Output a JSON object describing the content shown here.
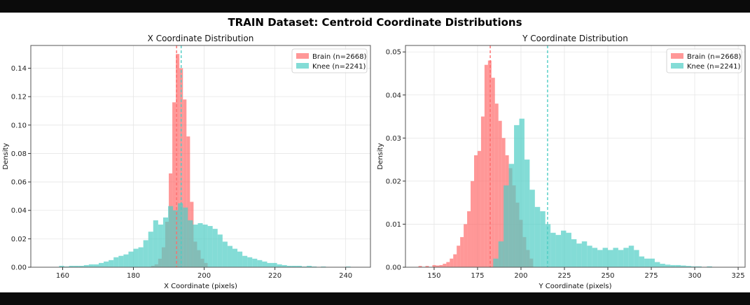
{
  "figure": {
    "title": "TRAIN Dataset: Centroid Coordinate Distributions"
  },
  "colors": {
    "brain": "#ff6b6b",
    "knee": "#4ecdc4",
    "axis": "#555555",
    "grid": "#e6e6e6"
  },
  "chart_data": [
    {
      "type": "histogram",
      "title": "X Coordinate Distribution",
      "xlabel": "X Coordinate (pixels)",
      "ylabel": "Density",
      "xlim": [
        151,
        247
      ],
      "ylim": [
        0,
        0.156
      ],
      "xticks": [
        160,
        180,
        200,
        220,
        240
      ],
      "yticks": [
        0.0,
        0.02,
        0.04,
        0.06,
        0.08,
        0.1,
        0.12,
        0.14
      ],
      "ytick_labels": [
        "0.00",
        "0.02",
        "0.04",
        "0.06",
        "0.08",
        "0.10",
        "0.12",
        "0.14"
      ],
      "legend_position": "top-right",
      "grid": true,
      "series": [
        {
          "name": "Brain (n=2668)",
          "color": "brain",
          "mean_line": 192.2,
          "bins": [
            [
              185,
              186,
              0.001
            ],
            [
              186,
              187,
              0.002
            ],
            [
              187,
              188,
              0.006
            ],
            [
              188,
              189,
              0.014
            ],
            [
              189,
              190,
              0.032
            ],
            [
              190,
              191,
              0.066
            ],
            [
              191,
              192,
              0.116
            ],
            [
              192,
              193,
              0.15
            ],
            [
              193,
              194,
              0.14
            ],
            [
              194,
              195,
              0.118
            ],
            [
              195,
              196,
              0.092
            ],
            [
              196,
              197,
              0.046
            ],
            [
              197,
              198,
              0.018
            ],
            [
              198,
              199,
              0.012
            ],
            [
              199,
              200,
              0.006
            ],
            [
              200,
              201,
              0.003
            ]
          ]
        },
        {
          "name": "Knee (n=2241)",
          "color": "knee",
          "mean_line": 193.5,
          "bins": [
            [
              159,
              160.4,
              0.001
            ],
            [
              160.4,
              161.8,
              0.0005
            ],
            [
              161.8,
              163.2,
              0.001
            ],
            [
              163.2,
              164.6,
              0.001
            ],
            [
              164.6,
              166,
              0.001
            ],
            [
              166,
              167.4,
              0.0015
            ],
            [
              167.4,
              168.8,
              0.002
            ],
            [
              168.8,
              170.2,
              0.002
            ],
            [
              170.2,
              171.6,
              0.003
            ],
            [
              171.6,
              173,
              0.004
            ],
            [
              173,
              174.4,
              0.005
            ],
            [
              174.4,
              175.8,
              0.007
            ],
            [
              175.8,
              177.2,
              0.008
            ],
            [
              177.2,
              178.6,
              0.009
            ],
            [
              178.6,
              180,
              0.011
            ],
            [
              180,
              181.4,
              0.013
            ],
            [
              181.4,
              182.8,
              0.014
            ],
            [
              182.8,
              184.2,
              0.019
            ],
            [
              184.2,
              185.6,
              0.025
            ],
            [
              185.6,
              187,
              0.033
            ],
            [
              187,
              188.4,
              0.03
            ],
            [
              188.4,
              189.8,
              0.035
            ],
            [
              189.8,
              191.2,
              0.043
            ],
            [
              191.2,
              192.6,
              0.04
            ],
            [
              192.6,
              194,
              0.045
            ],
            [
              194,
              195.4,
              0.042
            ],
            [
              195.4,
              196.8,
              0.033
            ],
            [
              196.8,
              198.2,
              0.03
            ],
            [
              198.2,
              199.6,
              0.031
            ],
            [
              199.6,
              201,
              0.03
            ],
            [
              201,
              202.4,
              0.029
            ],
            [
              202.4,
              203.8,
              0.027
            ],
            [
              203.8,
              205.2,
              0.023
            ],
            [
              205.2,
              206.6,
              0.018
            ],
            [
              206.6,
              208,
              0.015
            ],
            [
              208,
              209.4,
              0.013
            ],
            [
              209.4,
              210.8,
              0.011
            ],
            [
              210.8,
              212.2,
              0.008
            ],
            [
              212.2,
              213.6,
              0.007
            ],
            [
              213.6,
              215,
              0.006
            ],
            [
              215,
              216.4,
              0.005
            ],
            [
              216.4,
              217.8,
              0.004
            ],
            [
              217.8,
              219.2,
              0.003
            ],
            [
              219.2,
              220.6,
              0.003
            ],
            [
              220.6,
              222,
              0.002
            ],
            [
              222,
              223.4,
              0.0015
            ],
            [
              223.4,
              224.8,
              0.001
            ],
            [
              224.8,
              226.2,
              0.001
            ],
            [
              226.2,
              227.6,
              0.001
            ],
            [
              227.6,
              229,
              0.0005
            ],
            [
              229,
              230.4,
              0.001
            ],
            [
              230.4,
              231.8,
              0.0005
            ],
            [
              233,
              234.4,
              0.0005
            ],
            [
              240,
              241.4,
              0.0005
            ]
          ]
        }
      ]
    },
    {
      "type": "histogram",
      "title": "Y Coordinate Distribution",
      "xlabel": "Y Coordinate (pixels)",
      "ylabel": "Density",
      "xlim": [
        133.5,
        329
      ],
      "ylim": [
        0,
        0.0515
      ],
      "xticks": [
        150,
        175,
        200,
        225,
        250,
        275,
        300,
        325
      ],
      "yticks": [
        0.0,
        0.01,
        0.02,
        0.03,
        0.04,
        0.05
      ],
      "ytick_labels": [
        "0.00",
        "0.01",
        "0.02",
        "0.03",
        "0.04",
        "0.05"
      ],
      "legend_position": "top-right",
      "grid": true,
      "series": [
        {
          "name": "Brain (n=2668)",
          "color": "brain",
          "mean_line": 182.3,
          "bins": [
            [
              141,
              143,
              0.0003
            ],
            [
              145,
              147,
              0.0003
            ],
            [
              149,
              151,
              0.0005
            ],
            [
              151,
              153,
              0.0004
            ],
            [
              153,
              155,
              0.0005
            ],
            [
              155,
              157,
              0.0008
            ],
            [
              157,
              159,
              0.0012
            ],
            [
              159,
              161,
              0.002
            ],
            [
              161,
              163,
              0.003
            ],
            [
              163,
              165,
              0.005
            ],
            [
              165,
              167,
              0.007
            ],
            [
              167,
              169,
              0.01
            ],
            [
              169,
              171,
              0.013
            ],
            [
              171,
              173,
              0.02
            ],
            [
              173,
              175,
              0.026
            ],
            [
              175,
              177,
              0.027
            ],
            [
              177,
              179,
              0.035
            ],
            [
              179,
              181,
              0.047
            ],
            [
              181,
              183,
              0.048
            ],
            [
              183,
              185,
              0.044
            ],
            [
              185,
              187,
              0.038
            ],
            [
              187,
              189,
              0.034
            ],
            [
              189,
              191,
              0.03
            ],
            [
              191,
              193,
              0.026
            ],
            [
              193,
              195,
              0.023
            ],
            [
              195,
              197,
              0.019
            ],
            [
              197,
              199,
              0.015
            ],
            [
              199,
              201,
              0.011
            ],
            [
              201,
              203,
              0.007
            ],
            [
              203,
              205,
              0.004
            ],
            [
              205,
              207,
              0.002
            ]
          ]
        },
        {
          "name": "Knee (n=2241)",
          "color": "knee",
          "mean_line": 215.3,
          "bins": [
            [
              184,
              187,
              0.002
            ],
            [
              187,
              190,
              0.006
            ],
            [
              190,
              193,
              0.019
            ],
            [
              193,
              196,
              0.024
            ],
            [
              196,
              199,
              0.033
            ],
            [
              199,
              202,
              0.0345
            ],
            [
              202,
              205,
              0.025
            ],
            [
              205,
              208,
              0.018
            ],
            [
              208,
              211,
              0.014
            ],
            [
              211,
              214,
              0.013
            ],
            [
              214,
              217,
              0.01
            ],
            [
              217,
              220,
              0.008
            ],
            [
              220,
              223,
              0.0075
            ],
            [
              223,
              226,
              0.0085
            ],
            [
              226,
              229,
              0.008
            ],
            [
              229,
              232,
              0.0065
            ],
            [
              232,
              235,
              0.0055
            ],
            [
              235,
              238,
              0.006
            ],
            [
              238,
              241,
              0.005
            ],
            [
              241,
              244,
              0.0045
            ],
            [
              244,
              247,
              0.004
            ],
            [
              247,
              250,
              0.0045
            ],
            [
              250,
              253,
              0.004
            ],
            [
              253,
              256,
              0.0045
            ],
            [
              256,
              259,
              0.004
            ],
            [
              259,
              262,
              0.0045
            ],
            [
              262,
              265,
              0.005
            ],
            [
              265,
              268,
              0.004
            ],
            [
              268,
              271,
              0.0025
            ],
            [
              271,
              274,
              0.002
            ],
            [
              274,
              277,
              0.002
            ],
            [
              277,
              280,
              0.0012
            ],
            [
              280,
              283,
              0.0008
            ],
            [
              283,
              286,
              0.0006
            ],
            [
              286,
              289,
              0.0005
            ],
            [
              289,
              292,
              0.0005
            ],
            [
              292,
              295,
              0.0004
            ],
            [
              295,
              298,
              0.0003
            ],
            [
              298,
              301,
              0.0002
            ],
            [
              301,
              304,
              0.0002
            ],
            [
              307,
              310,
              0.0002
            ]
          ]
        }
      ]
    }
  ]
}
